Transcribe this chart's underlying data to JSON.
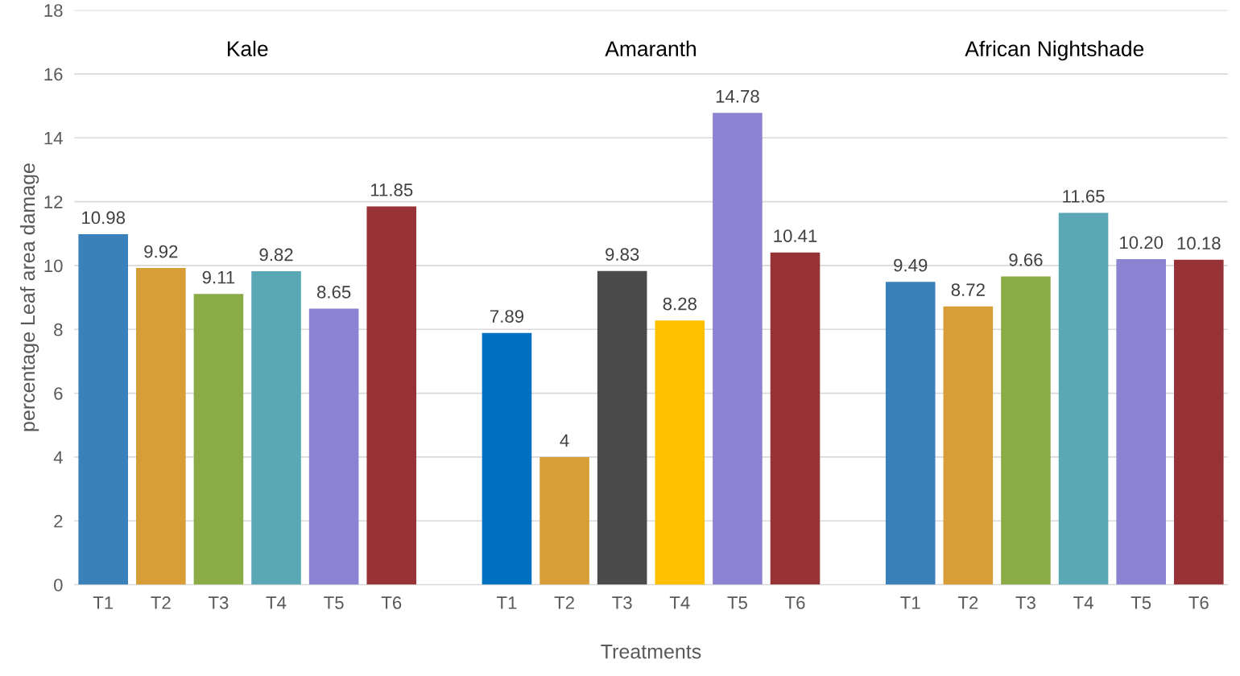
{
  "chart_data": {
    "type": "bar",
    "xlabel": "Treatments",
    "ylabel": "percentage Leaf area damage",
    "categories": [
      "T1",
      "T2",
      "T3",
      "T4",
      "T5",
      "T6",
      null,
      "T1",
      "T2",
      "T3",
      "T4",
      "T5",
      "T6",
      null,
      "T1",
      "T2",
      "T3",
      "T4",
      "T5",
      "T6"
    ],
    "values": [
      10.98,
      9.92,
      9.11,
      9.82,
      8.65,
      11.85,
      null,
      7.89,
      4,
      9.83,
      8.28,
      14.78,
      10.41,
      null,
      9.49,
      8.72,
      9.66,
      11.65,
      10.2,
      10.18
    ],
    "value_labels": [
      "10.98",
      "9.92",
      "9.11",
      "9.82",
      "8.65",
      "11.85",
      null,
      "7.89",
      "4",
      "9.83",
      "8.28",
      "14.78",
      "10.41",
      null,
      "9.49",
      "8.72",
      "9.66",
      "11.65",
      "10.20",
      "10.18"
    ],
    "colors": [
      "#3a80ba",
      "#d79e38",
      "#8aab45",
      "#5aa8b5",
      "#8b83d2",
      "#973236",
      null,
      "#0070c0",
      "#d79e38",
      "#4b4b4b",
      "#ffc000",
      "#8b83d2",
      "#973236",
      null,
      "#3a80ba",
      "#d79e38",
      "#8aab45",
      "#5aa8b5",
      "#8b83d2",
      "#973236"
    ],
    "annotations": [
      "Kale",
      "Amaranth",
      "African Nightshade"
    ],
    "ylim": [
      0,
      18
    ],
    "yticks": [
      0,
      2,
      4,
      6,
      8,
      10,
      12,
      14,
      16,
      18
    ],
    "grid": "y"
  }
}
